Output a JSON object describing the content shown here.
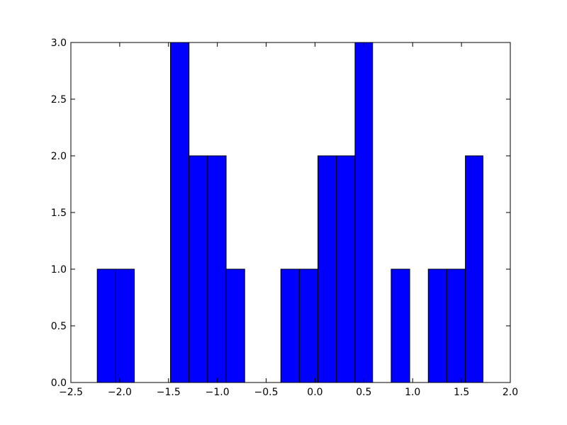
{
  "chart_data": {
    "type": "histogram",
    "bins": [
      -2.23,
      -2.04,
      -1.85,
      -1.67,
      -1.48,
      -1.29,
      -1.1,
      -0.91,
      -0.72,
      -0.54,
      -0.35,
      -0.16,
      0.03,
      0.22,
      0.41,
      0.59,
      0.78,
      0.97,
      1.16,
      1.35,
      1.54,
      1.72
    ],
    "counts": [
      1,
      1,
      0,
      0,
      3,
      2,
      2,
      1,
      0,
      0,
      1,
      1,
      2,
      2,
      3,
      0,
      1,
      0,
      1,
      1,
      2
    ],
    "color": "#0000ff",
    "xlim": [
      -2.5,
      2.0
    ],
    "ylim": [
      0,
      3.0
    ],
    "xticks": [
      {
        "value": -2.5,
        "label": "−2.5"
      },
      {
        "value": -2.0,
        "label": "−2.0"
      },
      {
        "value": -1.5,
        "label": "−1.5"
      },
      {
        "value": -1.0,
        "label": "−1.0"
      },
      {
        "value": -0.5,
        "label": "−0.5"
      },
      {
        "value": 0,
        "label": "0.0"
      },
      0.5,
      {
        "value": 1,
        "label": "1.0"
      },
      1.5,
      {
        "value": 2,
        "label": "2.0"
      }
    ],
    "yticks": [
      {
        "value": 0,
        "label": "0.0"
      },
      0.5,
      {
        "value": 1,
        "label": "1.0"
      },
      1.5,
      {
        "value": 2,
        "label": "2.0"
      },
      2.5,
      {
        "value": 3,
        "label": "3.0"
      }
    ]
  }
}
